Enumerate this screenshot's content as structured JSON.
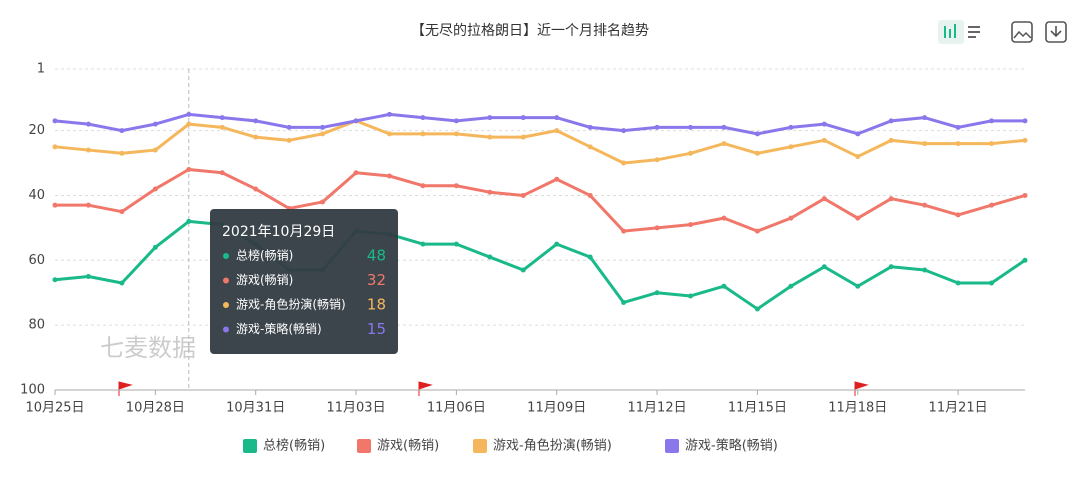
{
  "chart_data": {
    "type": "line",
    "title": "【无尽的拉格朗日】近一个月排名趋势",
    "watermark": "七麦数据",
    "tooltip_title": "2021年10月29日",
    "tooltip_index": 4,
    "categories": [
      "10月25日",
      null,
      null,
      "10月28日",
      null,
      null,
      "10月31日",
      null,
      null,
      "11月03日",
      null,
      null,
      "11月06日",
      null,
      null,
      "11月09日",
      null,
      null,
      "11月12日",
      null,
      null,
      "11月15日",
      null,
      null,
      "11月18日",
      null,
      null,
      "11月21日",
      null,
      null
    ],
    "ylim": [
      1,
      100
    ],
    "y_inverted": true,
    "yticks": [
      1,
      20,
      40,
      60,
      80,
      100
    ],
    "grid": true,
    "series": [
      {
        "name": "总榜(畅销)",
        "color": "#19b98a",
        "values": [
          66,
          65,
          67,
          56,
          48,
          49,
          55,
          63,
          63,
          51,
          52,
          55,
          55,
          59,
          63,
          55,
          59,
          73,
          70,
          71,
          68,
          75,
          68,
          62,
          68,
          62,
          63,
          67,
          67,
          60
        ]
      },
      {
        "name": "游戏(畅销)",
        "color": "#f0776a",
        "values": [
          43,
          43,
          45,
          38,
          32,
          33,
          38,
          44,
          42,
          33,
          34,
          37,
          37,
          39,
          40,
          35,
          40,
          51,
          50,
          49,
          47,
          51,
          47,
          41,
          47,
          41,
          43,
          46,
          43,
          40
        ]
      },
      {
        "name": "游戏-角色扮演(畅销)",
        "color": "#f5b75c",
        "values": [
          25,
          26,
          27,
          26,
          18,
          19,
          22,
          23,
          21,
          17,
          21,
          21,
          21,
          22,
          22,
          20,
          25,
          30,
          29,
          27,
          24,
          27,
          25,
          23,
          28,
          23,
          24,
          24,
          24,
          23
        ]
      },
      {
        "name": "游戏-策略(畅销)",
        "color": "#8b77ec",
        "values": [
          17,
          18,
          20,
          18,
          15,
          16,
          17,
          19,
          19,
          17,
          15,
          16,
          17,
          16,
          16,
          16,
          19,
          20,
          19,
          19,
          19,
          21,
          19,
          18,
          21,
          17,
          16,
          19,
          17,
          17
        ]
      }
    ]
  }
}
